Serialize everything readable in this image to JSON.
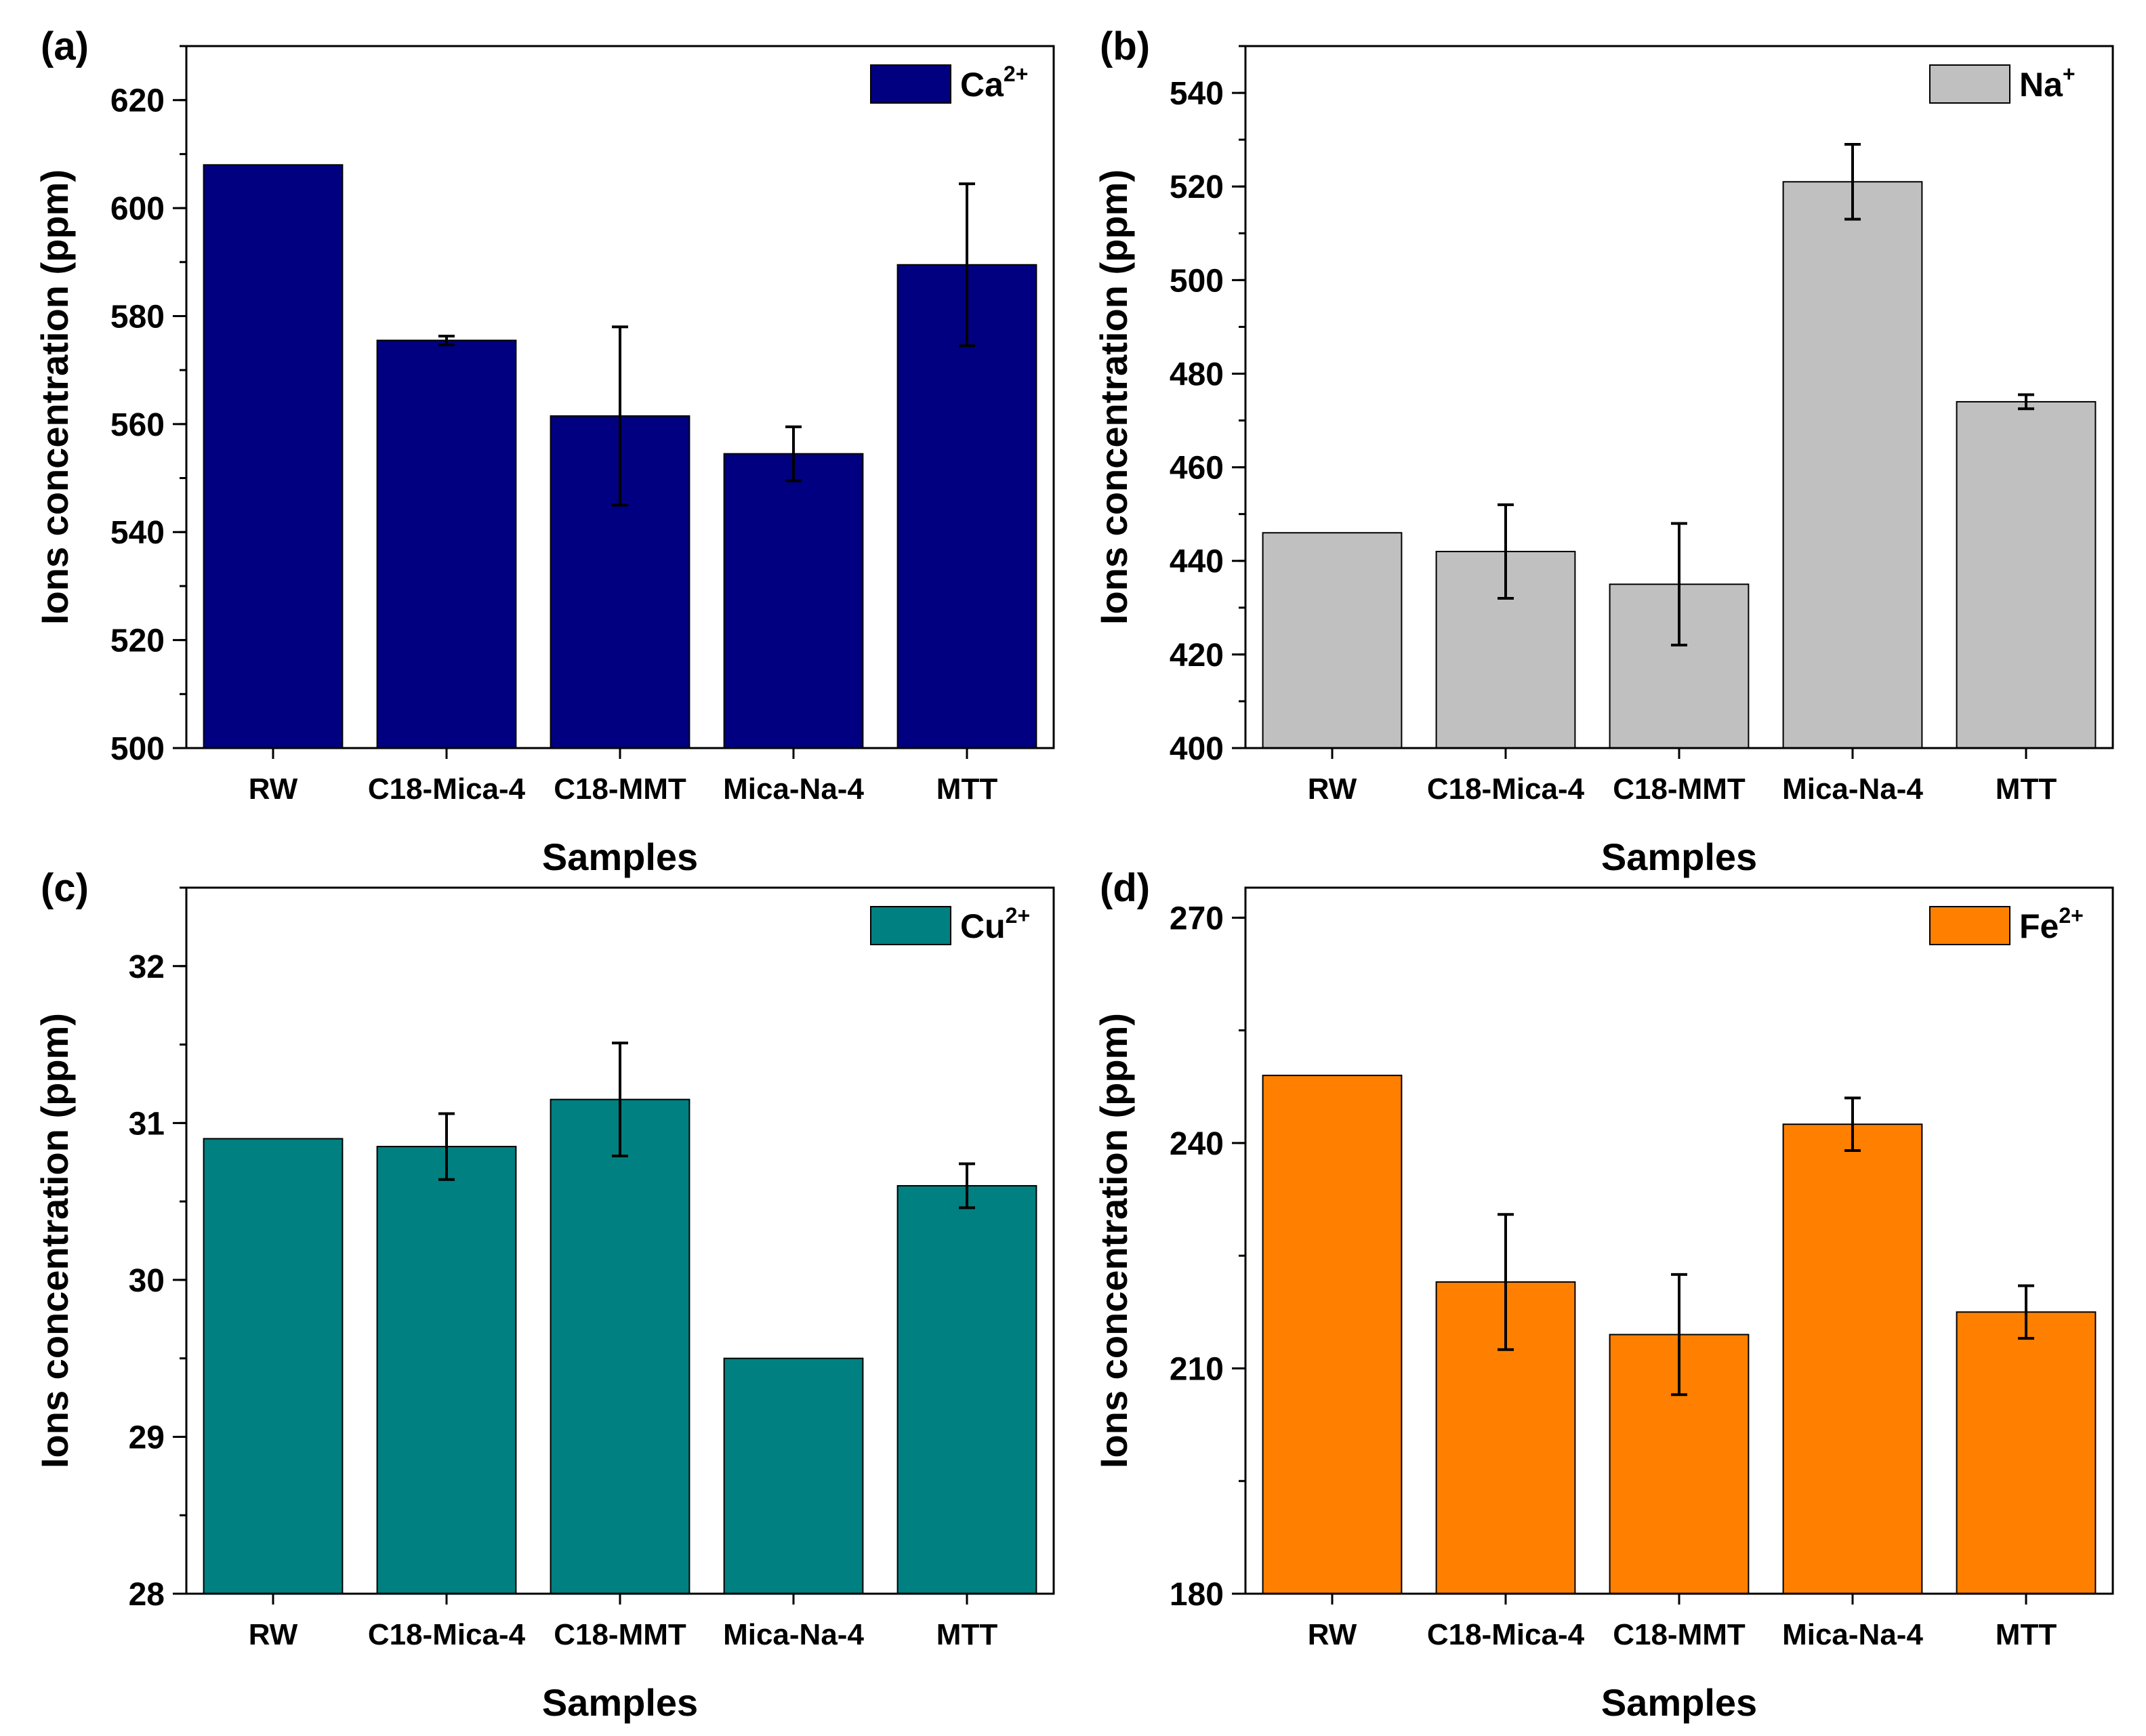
{
  "chart_data": [
    {
      "id": "a",
      "type": "bar",
      "panel_label": "(a)",
      "xlabel": "Samples",
      "ylabel": "Ions concentration (ppm)",
      "categories": [
        "RW",
        "C18-Mica-4",
        "C18-MMT",
        "Mica-Na-4",
        "MTT"
      ],
      "values": [
        608,
        575.5,
        561.5,
        554.5,
        589.5
      ],
      "errors": [
        0,
        0.8,
        16.5,
        5,
        15
      ],
      "ylim": [
        500,
        630
      ],
      "yticks": [
        500,
        520,
        540,
        560,
        580,
        600,
        620
      ],
      "minor_step": 10,
      "legend": {
        "base": "Ca",
        "sup": "2+",
        "position": "top-right"
      },
      "color": "#000080"
    },
    {
      "id": "b",
      "type": "bar",
      "panel_label": "(b)",
      "xlabel": "Samples",
      "ylabel": "Ions concentration (ppm)",
      "categories": [
        "RW",
        "C18-Mica-4",
        "C18-MMT",
        "Mica-Na-4",
        "MTT"
      ],
      "values": [
        446,
        442,
        435,
        521,
        474
      ],
      "errors": [
        0,
        10,
        13,
        8,
        1.5
      ],
      "ylim": [
        400,
        550
      ],
      "yticks": [
        400,
        420,
        440,
        460,
        480,
        500,
        520,
        540
      ],
      "minor_step": 10,
      "legend": {
        "base": "Na",
        "sup": "+",
        "position": "top-right"
      },
      "color": "#c0c0c0"
    },
    {
      "id": "c",
      "type": "bar",
      "panel_label": "(c)",
      "xlabel": "Samples",
      "ylabel": "Ions concentration (ppm)",
      "categories": [
        "RW",
        "C18-Mica-4",
        "C18-MMT",
        "Mica-Na-4",
        "MTT"
      ],
      "values": [
        30.9,
        30.85,
        31.15,
        29.5,
        30.6
      ],
      "errors": [
        0,
        0.21,
        0.36,
        0,
        0.14
      ],
      "ylim": [
        28,
        32.5
      ],
      "yticks": [
        28,
        29,
        30,
        31,
        32
      ],
      "minor_step": 0.5,
      "legend": {
        "base": "Cu",
        "sup": "2+",
        "position": "top-right"
      },
      "color": "#008080"
    },
    {
      "id": "d",
      "type": "bar",
      "panel_label": "(d)",
      "xlabel": "Samples",
      "ylabel": "Ions concentration (ppm)",
      "categories": [
        "RW",
        "C18-Mica-4",
        "C18-MMT",
        "Mica-Na-4",
        "MTT"
      ],
      "values": [
        249,
        221.5,
        214.5,
        242.5,
        217.5
      ],
      "errors": [
        0,
        9,
        8,
        3.5,
        3.5
      ],
      "ylim": [
        180,
        274
      ],
      "yticks": [
        180,
        210,
        240,
        270
      ],
      "minor_step": 15,
      "legend": {
        "base": "Fe",
        "sup": "2+",
        "position": "top-right"
      },
      "color": "#ff8000"
    }
  ]
}
